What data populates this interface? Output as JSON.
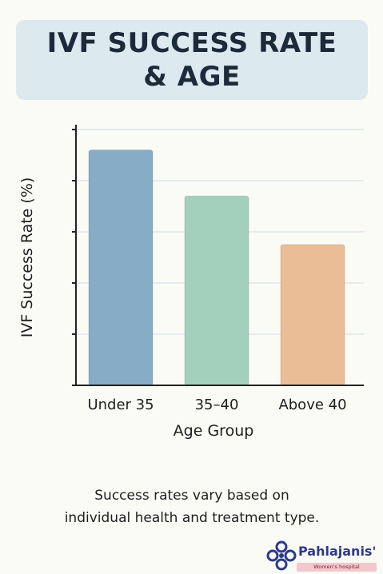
{
  "title": "IVF SUCCESS RATE & AGE",
  "chart_data": {
    "type": "bar",
    "categories": [
      "Under 35",
      "35–40",
      "Above 40"
    ],
    "values": [
      46,
      37,
      27.5
    ],
    "xlabel": "Age Group",
    "ylabel": "IVF Success Rate (%)",
    "ylim": [
      0,
      50
    ],
    "yticks": [
      0,
      10,
      20,
      30,
      40,
      50
    ],
    "show_ytick_labels": false,
    "grid": true,
    "colors": [
      "#87adc6",
      "#a2d0bd",
      "#ebbd96"
    ]
  },
  "caption": {
    "line1": "Success rates vary based on",
    "line2": "individual health and treatment type."
  },
  "logo": {
    "name": "Pahlajanis'",
    "subtitle": "Women's hospital",
    "icon": "flower-knot-icon",
    "color": "#2c3a8c"
  }
}
